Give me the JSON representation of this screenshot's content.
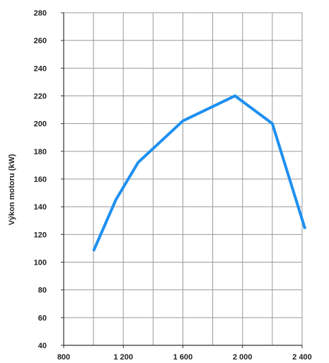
{
  "chart_data": {
    "type": "line",
    "title": "",
    "xlabel": "",
    "ylabel": "Výkon motoru (kW)",
    "xlim": [
      800,
      2400
    ],
    "ylim": [
      40,
      280
    ],
    "x_ticks": [
      800,
      1200,
      1600,
      2000,
      2400
    ],
    "x_tick_labels": [
      "800",
      "1 200",
      "1 600",
      "2 000",
      "2 400"
    ],
    "y_ticks": [
      40,
      60,
      80,
      100,
      120,
      140,
      160,
      180,
      200,
      220,
      240,
      260,
      280
    ],
    "y_tick_labels": [
      "40",
      "60",
      "80",
      "100",
      "120",
      "140",
      "160",
      "180",
      "200",
      "220",
      "240",
      "260",
      "280"
    ],
    "x_minor_gridlines": [
      1000,
      1400,
      1800,
      2200
    ],
    "grid": true,
    "series": [
      {
        "x": [
          1000,
          1150,
          1300,
          1600,
          1950,
          2200,
          2420
        ],
        "y": [
          108,
          145,
          172,
          202,
          220,
          200,
          124
        ]
      }
    ],
    "colors": {
      "line": "#1e90f0",
      "grid": "#999999",
      "axis": "#333333"
    }
  }
}
